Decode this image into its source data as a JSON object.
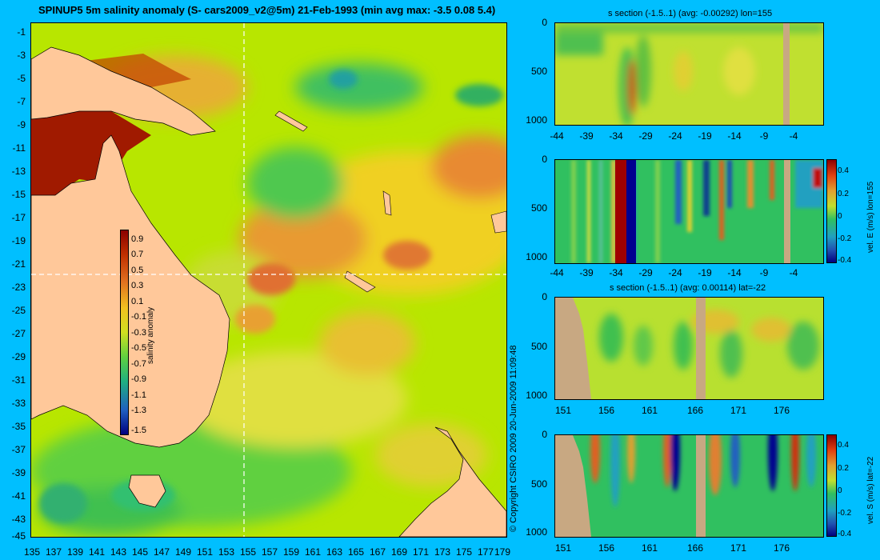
{
  "map": {
    "title": "SPINUP5 5m salinity anomaly  (S- cars2009_v2@5m) 21-Feb-1993 (min avg max: -3.5 0.08 5.4)",
    "lon_ticks": [
      "135",
      "137",
      "139",
      "141",
      "143",
      "145",
      "147",
      "149",
      "151",
      "153",
      "155",
      "157",
      "159",
      "161",
      "163",
      "165",
      "167",
      "169",
      "171",
      "173",
      "175",
      "177",
      "179"
    ],
    "lat_ticks": [
      "-1",
      "-3",
      "-5",
      "-7",
      "-9",
      "-11",
      "-13",
      "-15",
      "-17",
      "-19",
      "-21",
      "-23",
      "-25",
      "-27",
      "-29",
      "-31",
      "-33",
      "-35",
      "-37",
      "-39",
      "-41",
      "-43",
      "-45"
    ],
    "colorbar": {
      "label": "salinity anomaly",
      "ticks": [
        "0.9",
        "0.7",
        "0.5",
        "0.3",
        "0.1",
        "-0.1",
        "-0.3",
        "-0.5",
        "-0.7",
        "-0.9",
        "-1.1",
        "-1.3",
        "-1.5"
      ]
    },
    "section_lines": {
      "lon": 155,
      "lat": -22
    },
    "copyright": "© Copyright CSIRO 2009  20-Jun-2009 11:09:48"
  },
  "sections": {
    "p1": {
      "title": "s section (-1.5..1) (avg: -0.00292) lon=155",
      "xticks": [
        "-44",
        "-39",
        "-34",
        "-29",
        "-24",
        "-19",
        "-14",
        "-9",
        "-4"
      ],
      "yticks": [
        "0",
        "500",
        "1000"
      ]
    },
    "p2": {
      "xticks": [
        "-44",
        "-39",
        "-34",
        "-29",
        "-24",
        "-19",
        "-14",
        "-9",
        "-4"
      ],
      "yticks": [
        "0",
        "500",
        "1000"
      ],
      "cbar_label": "vel. E (m/s) lon=155",
      "cbar_ticks": [
        "0.4",
        "0.2",
        "0",
        "-0.2",
        "-0.4"
      ]
    },
    "p3": {
      "title": "s section (-1.5..1) (avg: 0.00114) lat=-22",
      "xticks": [
        "151",
        "156",
        "161",
        "166",
        "171",
        "176"
      ],
      "yticks": [
        "0",
        "500",
        "1000"
      ]
    },
    "p4": {
      "xticks": [
        "151",
        "156",
        "161",
        "166",
        "171",
        "176"
      ],
      "yticks": [
        "0",
        "500",
        "1000"
      ],
      "cbar_label": "vel. S (m/s) lat=-22",
      "cbar_ticks": [
        "0.4",
        "0.2",
        "0",
        "-0.2",
        "-0.4"
      ]
    }
  },
  "colors": {
    "background": "#00bfff",
    "land": "#ffc89a",
    "section_land": "#c8a882"
  }
}
